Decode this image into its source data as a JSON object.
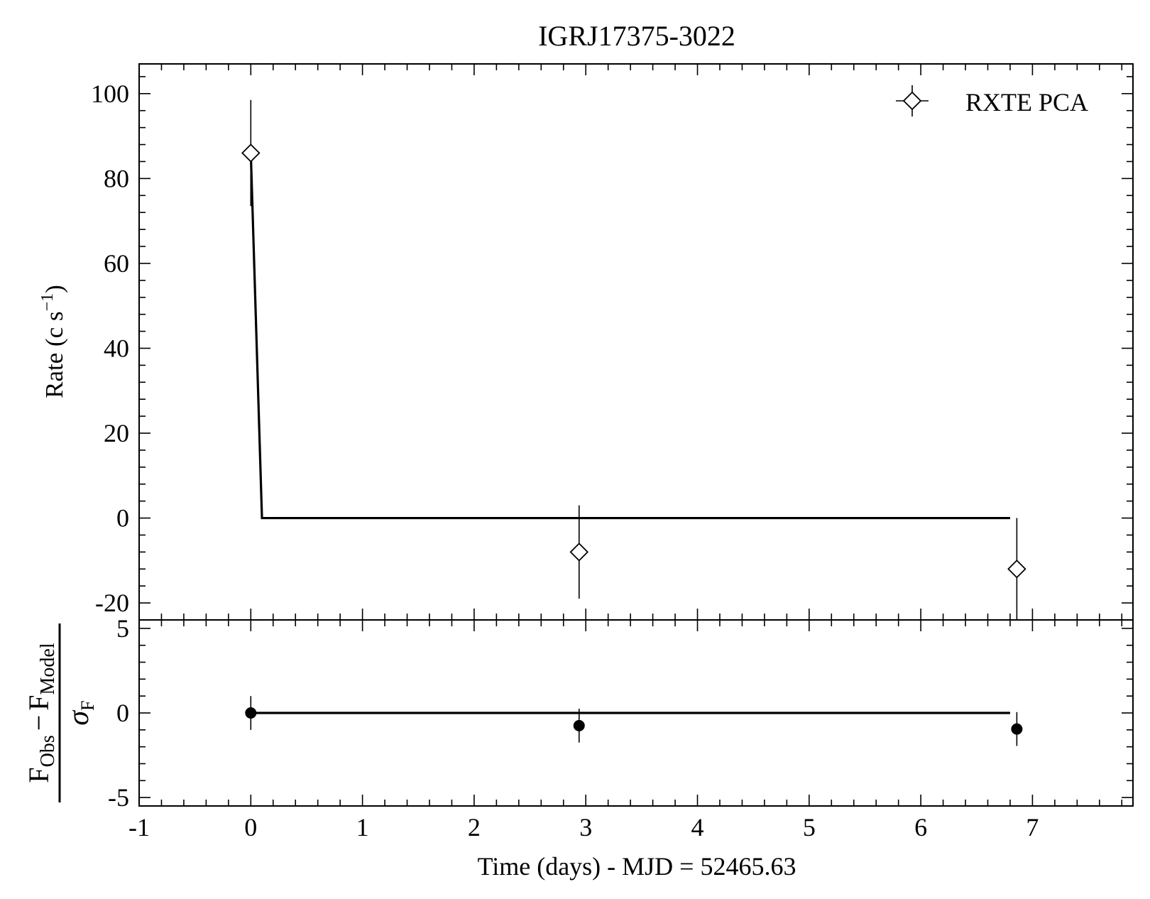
{
  "chart_data": [
    {
      "type": "scatter",
      "panel": "top",
      "title": "IGRJ17375-3022",
      "ylabel": {
        "main": "Rate (c s",
        "sup": "−1",
        "close": ")"
      },
      "xlim": [
        -1,
        7.9
      ],
      "ylim": [
        -24,
        107
      ],
      "x_ticks": [
        -1,
        0,
        1,
        2,
        3,
        4,
        5,
        6,
        7
      ],
      "y_ticks": [
        -20,
        0,
        20,
        40,
        60,
        80,
        100
      ],
      "y_tick_labels": [
        "-20",
        "0",
        "20",
        "40",
        "60",
        "80",
        "100"
      ],
      "legend": {
        "position": "top-right",
        "label": "RXTE PCA",
        "marker": "diamond-errorbar"
      },
      "series": [
        {
          "name": "RXTE PCA",
          "marker": "open-diamond",
          "points": [
            {
              "x": 0.0,
              "y": 86,
              "yerr": 12.5
            },
            {
              "x": 2.94,
              "y": -8,
              "yerr": 11
            },
            {
              "x": 6.86,
              "y": -12,
              "yerr": 12
            }
          ]
        }
      ],
      "model": {
        "style": "solid-line",
        "x": [
          0.0,
          0.1,
          6.8
        ],
        "y": [
          86,
          0,
          0
        ]
      }
    },
    {
      "type": "scatter",
      "panel": "bottom",
      "xlabel": "Time (days) - MJD = 52465.63",
      "ylabel": {
        "numerator": "F",
        "num_sub1": "Obs",
        "minus": "−",
        "num_f2": "F",
        "num_sub2": "Model",
        "denominator": "σ",
        "den_sub": "F"
      },
      "xlim": [
        -1,
        7.9
      ],
      "ylim": [
        -5.5,
        5.5
      ],
      "x_ticks": [
        -1,
        0,
        1,
        2,
        3,
        4,
        5,
        6,
        7
      ],
      "x_tick_labels": [
        "-1",
        "0",
        "1",
        "2",
        "3",
        "4",
        "5",
        "6",
        "7"
      ],
      "y_ticks": [
        -5,
        0,
        5
      ],
      "y_tick_labels": [
        "-5",
        "0",
        "5"
      ],
      "series": [
        {
          "marker": "filled-circle",
          "points": [
            {
              "x": 0.0,
              "y": 0.0,
              "yerr": 1.0
            },
            {
              "x": 2.94,
              "y": -0.75,
              "yerr": 1.0
            },
            {
              "x": 6.86,
              "y": -0.95,
              "yerr": 1.0
            }
          ]
        }
      ],
      "zero_line": {
        "x": [
          0.0,
          6.8
        ],
        "y": 0
      }
    }
  ]
}
